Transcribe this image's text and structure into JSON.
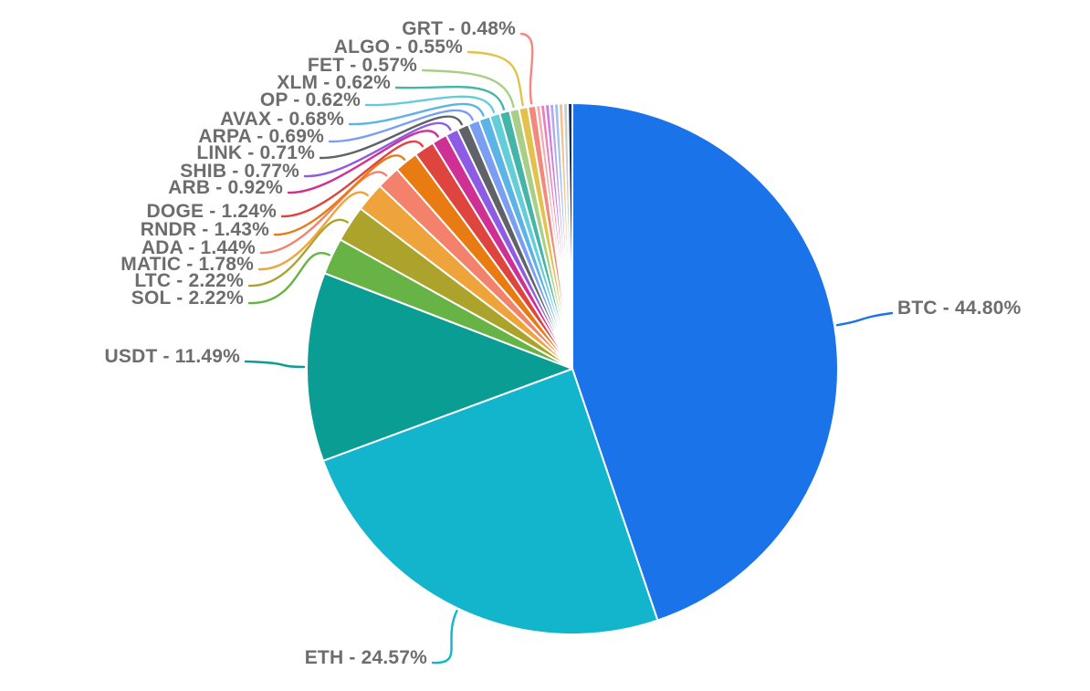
{
  "chart_data": {
    "type": "pie",
    "title": "",
    "legend_position": "labeled-callouts",
    "start_angle_deg": 0,
    "direction": "clockwise",
    "background": "#ffffff",
    "label_text_color": "#6d6d6d",
    "series": [
      {
        "label": "BTC",
        "value": 44.8,
        "display_label": "BTC - 44.80%",
        "color": "#1a73e8"
      },
      {
        "label": "ETH",
        "value": 24.57,
        "display_label": "ETH - 24.57%",
        "color": "#12b5cb"
      },
      {
        "label": "USDT",
        "value": 11.49,
        "display_label": "USDT - 11.49%",
        "color": "#0a9d94"
      },
      {
        "label": "SOL",
        "value": 2.22,
        "display_label": "SOL - 2.22%",
        "color": "#68b345"
      },
      {
        "label": "LTC",
        "value": 2.22,
        "display_label": "LTC - 2.22%",
        "color": "#aba32b"
      },
      {
        "label": "MATIC",
        "value": 1.78,
        "display_label": "MATIC - 1.78%",
        "color": "#efa33b"
      },
      {
        "label": "ADA",
        "value": 1.44,
        "display_label": "ADA - 1.44%",
        "color": "#f4816c"
      },
      {
        "label": "RNDR",
        "value": 1.43,
        "display_label": "RNDR - 1.43%",
        "color": "#e87c12"
      },
      {
        "label": "DOGE",
        "value": 1.24,
        "display_label": "DOGE - 1.24%",
        "color": "#df453f"
      },
      {
        "label": "ARB",
        "value": 0.92,
        "display_label": "ARB - 0.92%",
        "color": "#cf3093"
      },
      {
        "label": "SHIB",
        "value": 0.77,
        "display_label": "SHIB - 0.77%",
        "color": "#8e5ce4"
      },
      {
        "label": "LINK",
        "value": 0.71,
        "display_label": "LINK - 0.71%",
        "color": "#5f6368"
      },
      {
        "label": "ARPA",
        "value": 0.69,
        "display_label": "ARPA - 0.69%",
        "color": "#7a9ff2"
      },
      {
        "label": "AVAX",
        "value": 0.68,
        "display_label": "AVAX - 0.68%",
        "color": "#5cb3e6"
      },
      {
        "label": "OP",
        "value": 0.62,
        "display_label": "OP - 0.62%",
        "color": "#63cdd9"
      },
      {
        "label": "XLM",
        "value": 0.62,
        "display_label": "XLM - 0.62%",
        "color": "#45b5a8"
      },
      {
        "label": "FET",
        "value": 0.57,
        "display_label": "FET - 0.57%",
        "color": "#a8cf85"
      },
      {
        "label": "ALGO",
        "value": 0.55,
        "display_label": "ALGO - 0.55%",
        "color": "#e2c24b"
      },
      {
        "label": "GRT",
        "value": 0.48,
        "display_label": "GRT - 0.48%",
        "color": "#f2897c"
      }
    ],
    "unlabeled_slices": [
      {
        "value": 0.275,
        "color": "#f8a8b4"
      },
      {
        "value": 0.275,
        "color": "#ee7fb2"
      },
      {
        "value": 0.275,
        "color": "#cb7de0"
      },
      {
        "value": 0.275,
        "color": "#b9a8ef"
      },
      {
        "value": 0.275,
        "color": "#9fc0f2"
      },
      {
        "value": 0.275,
        "color": "#f3c08e"
      },
      {
        "value": 0.275,
        "color": "#c9ced3"
      },
      {
        "value": 0.275,
        "color": "#14325e"
      }
    ]
  }
}
